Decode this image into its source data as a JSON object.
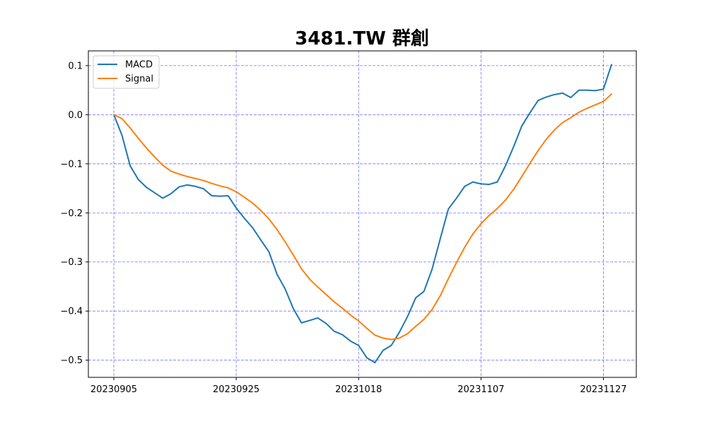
{
  "chart_data": {
    "type": "line",
    "title": "3481.TW 群創",
    "xlabel": "",
    "ylabel": "",
    "grid": true,
    "grid_color": "#0000ff",
    "legend_position": "upper-left",
    "ylim": [
      -0.535,
      0.13
    ],
    "yticks": [
      0.1,
      0.0,
      -0.1,
      -0.2,
      -0.3,
      -0.4,
      -0.5
    ],
    "ytick_labels": [
      "0.1",
      "0.0",
      "−0.1",
      "−0.2",
      "−0.3",
      "−0.4",
      "−0.5"
    ],
    "xticks": [
      {
        "index": 0,
        "label": "20230905"
      },
      {
        "index": 15,
        "label": "20230925"
      },
      {
        "index": 30,
        "label": "20231018"
      },
      {
        "index": 45,
        "label": "20231107"
      },
      {
        "index": 60,
        "label": "20231127"
      }
    ],
    "series": [
      {
        "name": "MACD",
        "color": "#1f77b4",
        "values": [
          0.0,
          -0.042,
          -0.104,
          -0.132,
          -0.148,
          -0.159,
          -0.17,
          -0.161,
          -0.147,
          -0.143,
          -0.146,
          -0.151,
          -0.165,
          -0.166,
          -0.165,
          -0.19,
          -0.211,
          -0.23,
          -0.255,
          -0.279,
          -0.325,
          -0.355,
          -0.395,
          -0.424,
          -0.419,
          -0.414,
          -0.425,
          -0.441,
          -0.448,
          -0.461,
          -0.47,
          -0.495,
          -0.505,
          -0.48,
          -0.47,
          -0.443,
          -0.411,
          -0.373,
          -0.36,
          -0.315,
          -0.253,
          -0.192,
          -0.17,
          -0.146,
          -0.137,
          -0.141,
          -0.142,
          -0.137,
          -0.104,
          -0.065,
          -0.023,
          0.004,
          0.029,
          0.036,
          0.041,
          0.044,
          0.035,
          0.05,
          0.05,
          0.049,
          0.052,
          0.102
        ]
      },
      {
        "name": "Signal",
        "color": "#ff7f0e",
        "values": [
          0.0,
          -0.008,
          -0.027,
          -0.048,
          -0.068,
          -0.086,
          -0.103,
          -0.115,
          -0.121,
          -0.126,
          -0.13,
          -0.134,
          -0.14,
          -0.145,
          -0.149,
          -0.157,
          -0.168,
          -0.18,
          -0.195,
          -0.212,
          -0.234,
          -0.259,
          -0.286,
          -0.314,
          -0.335,
          -0.351,
          -0.366,
          -0.381,
          -0.394,
          -0.408,
          -0.42,
          -0.435,
          -0.449,
          -0.455,
          -0.458,
          -0.455,
          -0.446,
          -0.431,
          -0.417,
          -0.397,
          -0.369,
          -0.334,
          -0.301,
          -0.27,
          -0.243,
          -0.222,
          -0.205,
          -0.191,
          -0.174,
          -0.152,
          -0.126,
          -0.099,
          -0.073,
          -0.05,
          -0.031,
          -0.016,
          -0.006,
          0.005,
          0.013,
          0.02,
          0.027,
          0.042
        ]
      }
    ]
  }
}
